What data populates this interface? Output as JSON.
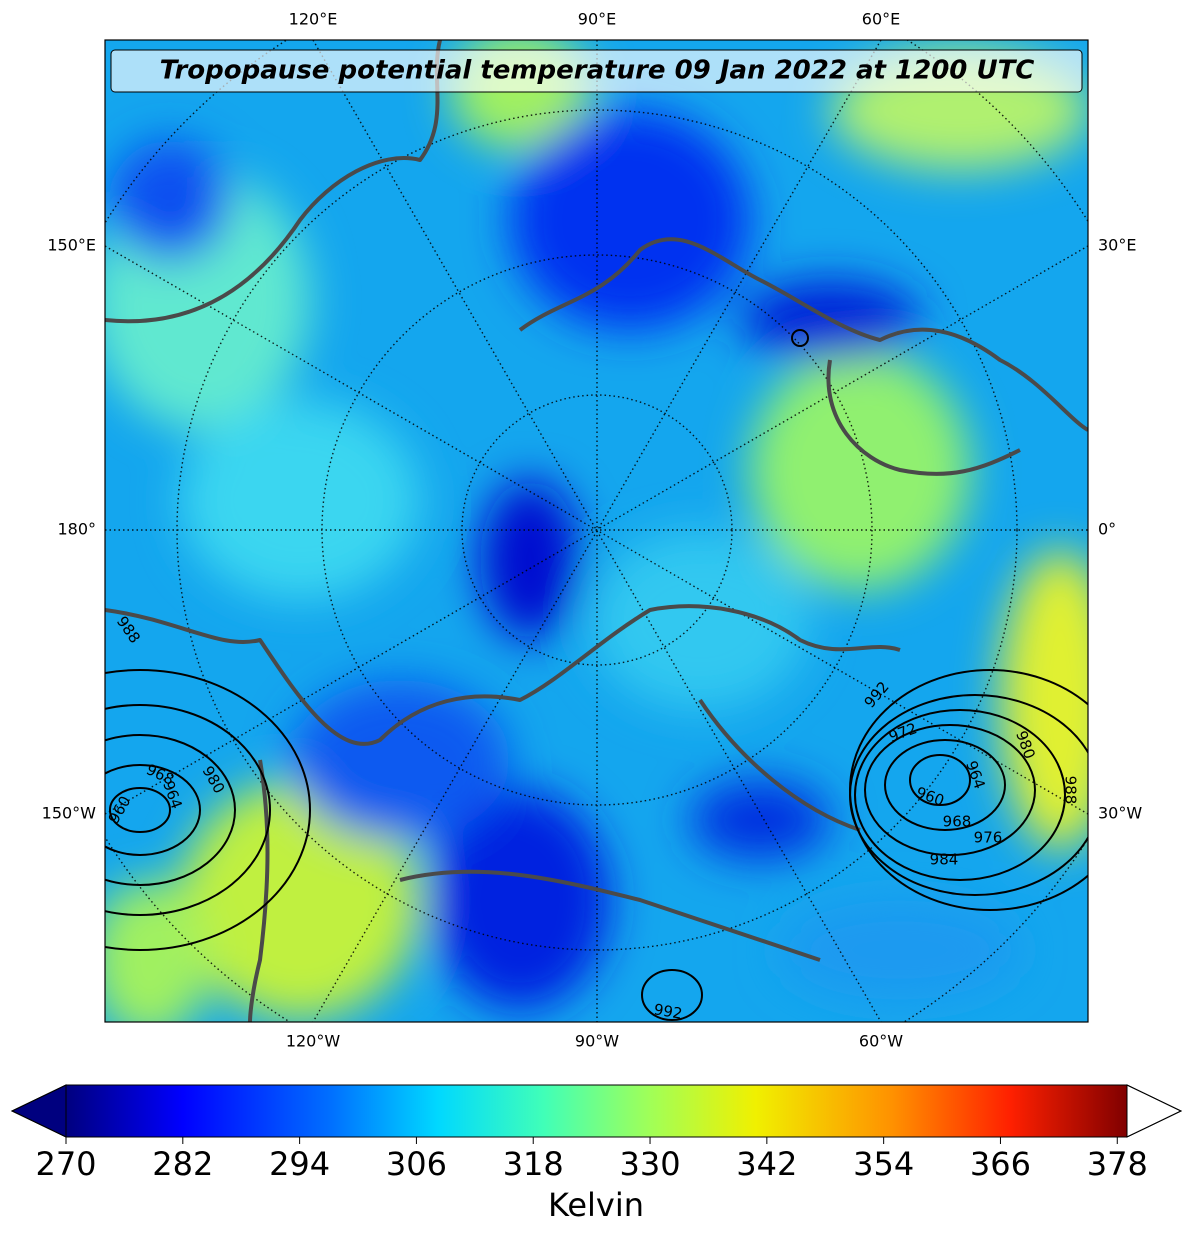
{
  "map": {
    "title": "Tropopause potential temperature 09 Jan 2022 at 1200 UTC",
    "top_labels": [
      "120°E",
      "90°E",
      "60°E"
    ],
    "bottom_labels": [
      "120°W",
      "90°W",
      "60°W"
    ],
    "left_labels": [
      "150°E",
      "180°",
      "150°W"
    ],
    "right_labels": [
      "30°E",
      "0°",
      "30°W"
    ],
    "contour_labels": [
      "988",
      "968",
      "964",
      "980",
      "960",
      "992",
      "972",
      "964",
      "980",
      "960",
      "988",
      "968",
      "976",
      "984",
      "992"
    ]
  },
  "colorbar": {
    "label": "Kelvin",
    "lim": [
      270,
      379
    ],
    "ticks": [
      270,
      282,
      294,
      306,
      318,
      330,
      342,
      354,
      366,
      378
    ]
  }
}
